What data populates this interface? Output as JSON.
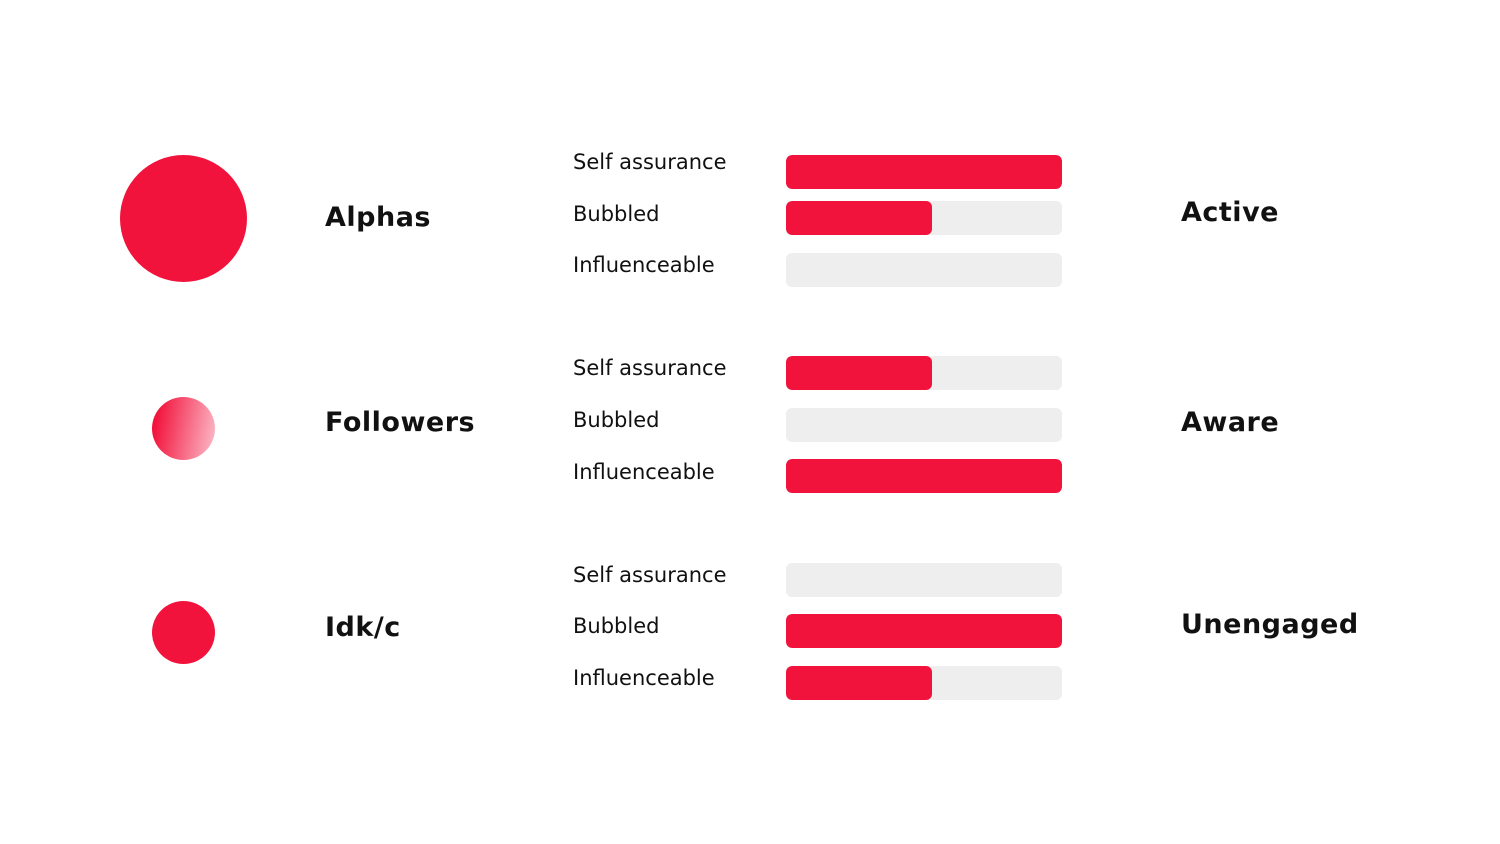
{
  "colors": {
    "accent": "#f2133c",
    "track": "#eeeeee",
    "gradient_light": "#fbb5c3"
  },
  "groups": [
    {
      "name": "Alphas",
      "status": "Active",
      "circle": "solid",
      "metrics": [
        {
          "label": "Self assurance",
          "fill": 1.0
        },
        {
          "label": "Bubbled",
          "fill": 0.53
        },
        {
          "label": "Influenceable",
          "fill": 0.0
        }
      ]
    },
    {
      "name": "Followers",
      "status": "Aware",
      "circle": "gradient",
      "metrics": [
        {
          "label": "Self assurance",
          "fill": 0.53
        },
        {
          "label": "Bubbled",
          "fill": 0.0
        },
        {
          "label": "Influenceable",
          "fill": 1.0
        }
      ]
    },
    {
      "name": "Idk/c",
      "status": "Unengaged",
      "circle": "solid",
      "metrics": [
        {
          "label": "Self assurance",
          "fill": 0.0
        },
        {
          "label": "Bubbled",
          "fill": 1.0
        },
        {
          "label": "Influenceable",
          "fill": 0.53
        }
      ]
    }
  ]
}
